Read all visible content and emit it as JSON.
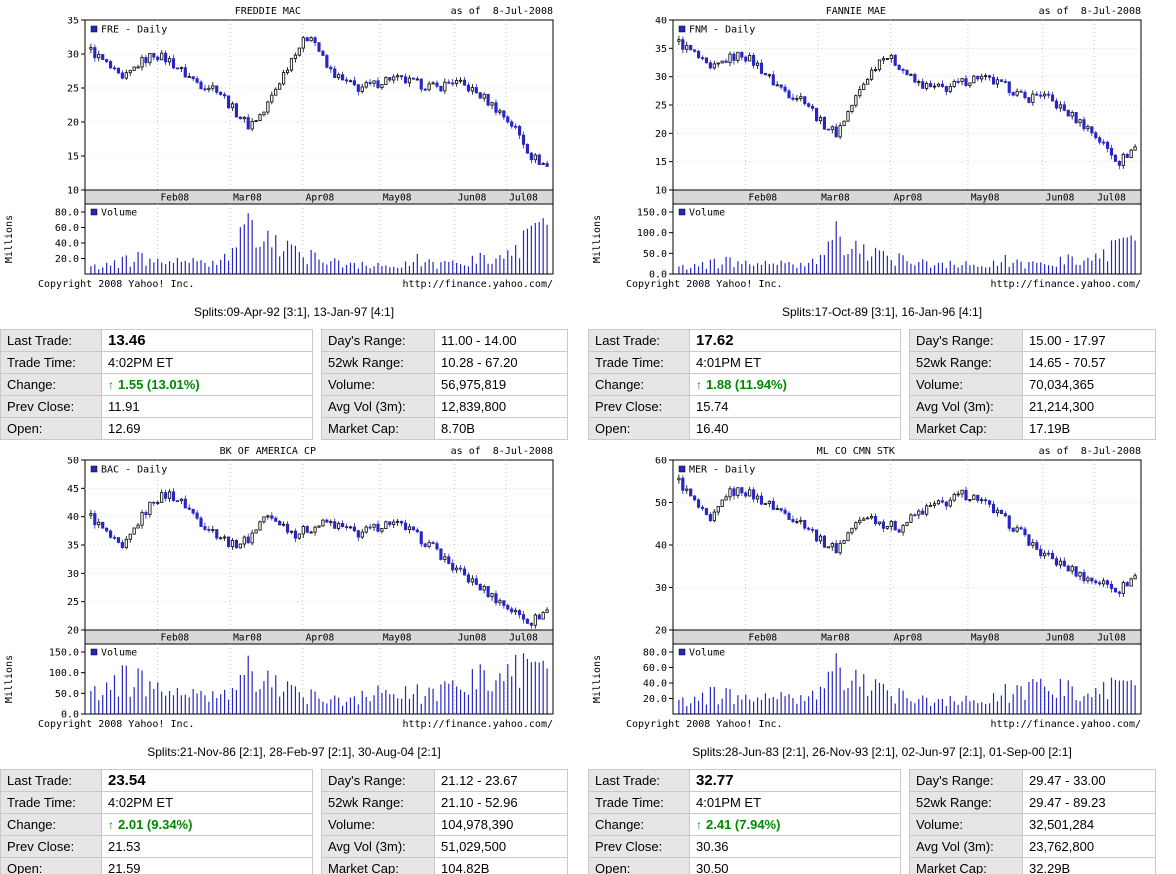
{
  "icons": {
    "up_arrow": "↑"
  },
  "colors": {
    "candle": "#2626c4",
    "volume_bar": "#2626c4",
    "change_green": "#008800",
    "band_bg": "#d8d8d8",
    "label_bg": "#e6e6e6",
    "table_border": "#c9c9c9"
  },
  "panels": [
    {
      "title": "FREDDIE MAC",
      "as_of": "as of  8-Jul-2008",
      "copyright": "Copyright 2008 Yahoo! Inc.",
      "url": "http://finance.yahoo.com/",
      "splits": "Splits:09-Apr-92 [3:1], 13-Jan-97 [4:1]",
      "quote_left": [
        {
          "label": "Last Trade:",
          "value": "13.46",
          "style": "big"
        },
        {
          "label": "Trade Time:",
          "value": "4:02PM ET"
        },
        {
          "label": "Change:",
          "value": "1.55 (13.01%)",
          "style": "up"
        },
        {
          "label": "Prev Close:",
          "value": "11.91"
        },
        {
          "label": "Open:",
          "value": "12.69"
        }
      ],
      "quote_right": [
        {
          "label": "Day's Range:",
          "value": "11.00 - 14.00"
        },
        {
          "label": "52wk Range:",
          "value": "10.28 - 67.20"
        },
        {
          "label": "Volume:",
          "value": "56,975,819"
        },
        {
          "label": "Avg Vol (3m):",
          "value": "12,839,800"
        },
        {
          "label": "Market Cap:",
          "value": "8.70B"
        }
      ]
    },
    {
      "title": "FANNIE MAE",
      "as_of": "as of  8-Jul-2008",
      "copyright": "Copyright 2008 Yahoo! Inc.",
      "url": "http://finance.yahoo.com/",
      "splits": "Splits:17-Oct-89 [3:1], 16-Jan-96 [4:1]",
      "quote_left": [
        {
          "label": "Last Trade:",
          "value": "17.62",
          "style": "big"
        },
        {
          "label": "Trade Time:",
          "value": "4:01PM ET"
        },
        {
          "label": "Change:",
          "value": "1.88 (11.94%)",
          "style": "up"
        },
        {
          "label": "Prev Close:",
          "value": "15.74"
        },
        {
          "label": "Open:",
          "value": "16.40"
        }
      ],
      "quote_right": [
        {
          "label": "Day's Range:",
          "value": "15.00 - 17.97"
        },
        {
          "label": "52wk Range:",
          "value": "14.65 - 70.57"
        },
        {
          "label": "Volume:",
          "value": "70,034,365"
        },
        {
          "label": "Avg Vol (3m):",
          "value": "21,214,300"
        },
        {
          "label": "Market Cap:",
          "value": "17.19B"
        }
      ]
    },
    {
      "title": "BK OF AMERICA CP",
      "as_of": "as of  8-Jul-2008",
      "copyright": "Copyright 2008 Yahoo! Inc.",
      "url": "http://finance.yahoo.com/",
      "splits": "Splits:21-Nov-86 [2:1], 28-Feb-97 [2:1], 30-Aug-04 [2:1]",
      "quote_left": [
        {
          "label": "Last Trade:",
          "value": "23.54",
          "style": "big"
        },
        {
          "label": "Trade Time:",
          "value": "4:02PM ET"
        },
        {
          "label": "Change:",
          "value": "2.01 (9.34%)",
          "style": "up"
        },
        {
          "label": "Prev Close:",
          "value": "21.53"
        },
        {
          "label": "Open:",
          "value": "21.59"
        }
      ],
      "quote_right": [
        {
          "label": "Day's Range:",
          "value": "21.12 - 23.67"
        },
        {
          "label": "52wk Range:",
          "value": "21.10 - 52.96"
        },
        {
          "label": "Volume:",
          "value": "104,978,390"
        },
        {
          "label": "Avg Vol (3m):",
          "value": "51,029,500"
        },
        {
          "label": "Market Cap:",
          "value": "104.82B"
        }
      ]
    },
    {
      "title": "ML CO CMN STK",
      "as_of": "as of  8-Jul-2008",
      "copyright": "Copyright 2008 Yahoo! Inc.",
      "url": "http://finance.yahoo.com/",
      "splits": "Splits:28-Jun-83 [2:1], 26-Nov-93 [2:1], 02-Jun-97 [2:1], 01-Sep-00 [2:1]",
      "quote_left": [
        {
          "label": "Last Trade:",
          "value": "32.77",
          "style": "big"
        },
        {
          "label": "Trade Time:",
          "value": "4:01PM ET"
        },
        {
          "label": "Change:",
          "value": "2.41 (7.94%)",
          "style": "up"
        },
        {
          "label": "Prev Close:",
          "value": "30.36"
        },
        {
          "label": "Open:",
          "value": "30.50"
        }
      ],
      "quote_right": [
        {
          "label": "Day's Range:",
          "value": "29.47 - 33.00"
        },
        {
          "label": "52wk Range:",
          "value": "29.47 - 89.23"
        },
        {
          "label": "Volume:",
          "value": "32,501,284"
        },
        {
          "label": "Avg Vol (3m):",
          "value": "23,762,800"
        },
        {
          "label": "Market Cap:",
          "value": "32.29B"
        }
      ]
    }
  ],
  "chart_data": [
    {
      "type": "candlestick",
      "title": "FREDDIE MAC",
      "series_label": "FRE - Daily",
      "volume_label": "Volume",
      "ylabel_volume": "Millions",
      "x_months": [
        "Feb08",
        "Mar08",
        "Apr08",
        "May08",
        "Jun08",
        "Jul08"
      ],
      "month_fracs": [
        0.155,
        0.31,
        0.465,
        0.63,
        0.79,
        0.9
      ],
      "price_ylim": [
        10,
        35
      ],
      "price_ticks": [
        35,
        30,
        25,
        20,
        15,
        10
      ],
      "weekly_closes": [
        30.5,
        28.5,
        26.0,
        28.5,
        30.0,
        29.0,
        27.0,
        25.5,
        25.0,
        22.0,
        19.5,
        21.5,
        26.0,
        30.5,
        33.0,
        28.0,
        26.0,
        25.0,
        25.5,
        26.5,
        26.0,
        25.5,
        25.0,
        26.0,
        25.0,
        23.5,
        21.5,
        19.0,
        15.0,
        13.46
      ],
      "volume_ylim": [
        0,
        80
      ],
      "volume_ticks": [
        80,
        60,
        40,
        20
      ],
      "weekly_volumes_millions": [
        10,
        14,
        18,
        22,
        16,
        18,
        20,
        16,
        14,
        40,
        75,
        45,
        35,
        30,
        26,
        22,
        18,
        14,
        11,
        10,
        12,
        22,
        14,
        16,
        18,
        22,
        26,
        30,
        55,
        72
      ]
    },
    {
      "type": "candlestick",
      "title": "FANNIE MAE",
      "series_label": "FNM - Daily",
      "volume_label": "Volume",
      "ylabel_volume": "Millions",
      "x_months": [
        "Feb08",
        "Mar08",
        "Apr08",
        "May08",
        "Jun08",
        "Jul08"
      ],
      "month_fracs": [
        0.155,
        0.31,
        0.465,
        0.63,
        0.79,
        0.9
      ],
      "price_ylim": [
        10,
        40
      ],
      "price_ticks": [
        40,
        35,
        30,
        25,
        20,
        15,
        10
      ],
      "weekly_closes": [
        36,
        34,
        31,
        33,
        34,
        32,
        29,
        27,
        26,
        22,
        20,
        25,
        30,
        34,
        32,
        29,
        28,
        28,
        29,
        30,
        29,
        28,
        26,
        27,
        25,
        23,
        21,
        18,
        15,
        17.62
      ],
      "volume_ylim": [
        0,
        150
      ],
      "volume_ticks": [
        150,
        100,
        50,
        0
      ],
      "weekly_volumes_millions": [
        18,
        24,
        28,
        32,
        26,
        28,
        30,
        26,
        22,
        55,
        95,
        65,
        50,
        46,
        42,
        38,
        32,
        28,
        24,
        20,
        24,
        38,
        28,
        26,
        32,
        38,
        42,
        48,
        75,
        92
      ]
    },
    {
      "type": "candlestick",
      "title": "BK OF AMERICA CP",
      "series_label": "BAC - Daily",
      "volume_label": "Volume",
      "ylabel_volume": "Millions",
      "x_months": [
        "Feb08",
        "Mar08",
        "Apr08",
        "May08",
        "Jun08",
        "Jul08"
      ],
      "month_fracs": [
        0.155,
        0.31,
        0.465,
        0.63,
        0.79,
        0.9
      ],
      "price_ylim": [
        20,
        50
      ],
      "price_ticks": [
        50,
        45,
        40,
        35,
        30,
        25,
        20
      ],
      "weekly_closes": [
        40,
        37,
        34,
        39,
        43,
        44,
        42,
        39,
        37,
        35,
        36,
        40,
        39,
        37,
        38,
        39,
        38,
        37,
        38,
        39,
        38,
        36,
        34,
        31,
        29,
        27,
        25,
        23,
        21.5,
        23.54
      ],
      "volume_ylim": [
        0,
        150
      ],
      "volume_ticks": [
        150,
        100,
        50,
        0
      ],
      "weekly_volumes_millions": [
        55,
        75,
        95,
        85,
        65,
        60,
        55,
        50,
        46,
        75,
        105,
        85,
        65,
        55,
        50,
        46,
        42,
        46,
        50,
        55,
        50,
        55,
        65,
        75,
        85,
        95,
        105,
        115,
        110,
        125
      ]
    },
    {
      "type": "candlestick",
      "title": "ML CO CMN STK",
      "series_label": "MER - Daily",
      "volume_label": "Volume",
      "ylabel_volume": "Millions",
      "x_months": [
        "Feb08",
        "Mar08",
        "Apr08",
        "May08",
        "Jun08",
        "Jul08"
      ],
      "month_fracs": [
        0.155,
        0.31,
        0.465,
        0.63,
        0.79,
        0.9
      ],
      "price_ylim": [
        20,
        60
      ],
      "price_ticks": [
        60,
        50,
        40,
        30,
        20
      ],
      "weekly_closes": [
        55,
        50,
        45,
        52,
        53,
        51,
        49,
        47,
        45,
        41,
        39,
        44,
        47,
        45,
        44,
        47,
        49,
        50,
        52,
        51,
        48,
        45,
        42,
        38,
        36,
        34,
        32,
        31,
        29.5,
        32.77
      ],
      "volume_ylim": [
        0,
        80
      ],
      "volume_ticks": [
        80,
        60,
        40,
        20
      ],
      "weekly_volumes_millions": [
        18,
        22,
        28,
        26,
        20,
        23,
        26,
        23,
        20,
        42,
        62,
        46,
        36,
        32,
        28,
        25,
        22,
        20,
        18,
        16,
        20,
        32,
        38,
        42,
        38,
        32,
        28,
        33,
        38,
        42
      ]
    }
  ]
}
